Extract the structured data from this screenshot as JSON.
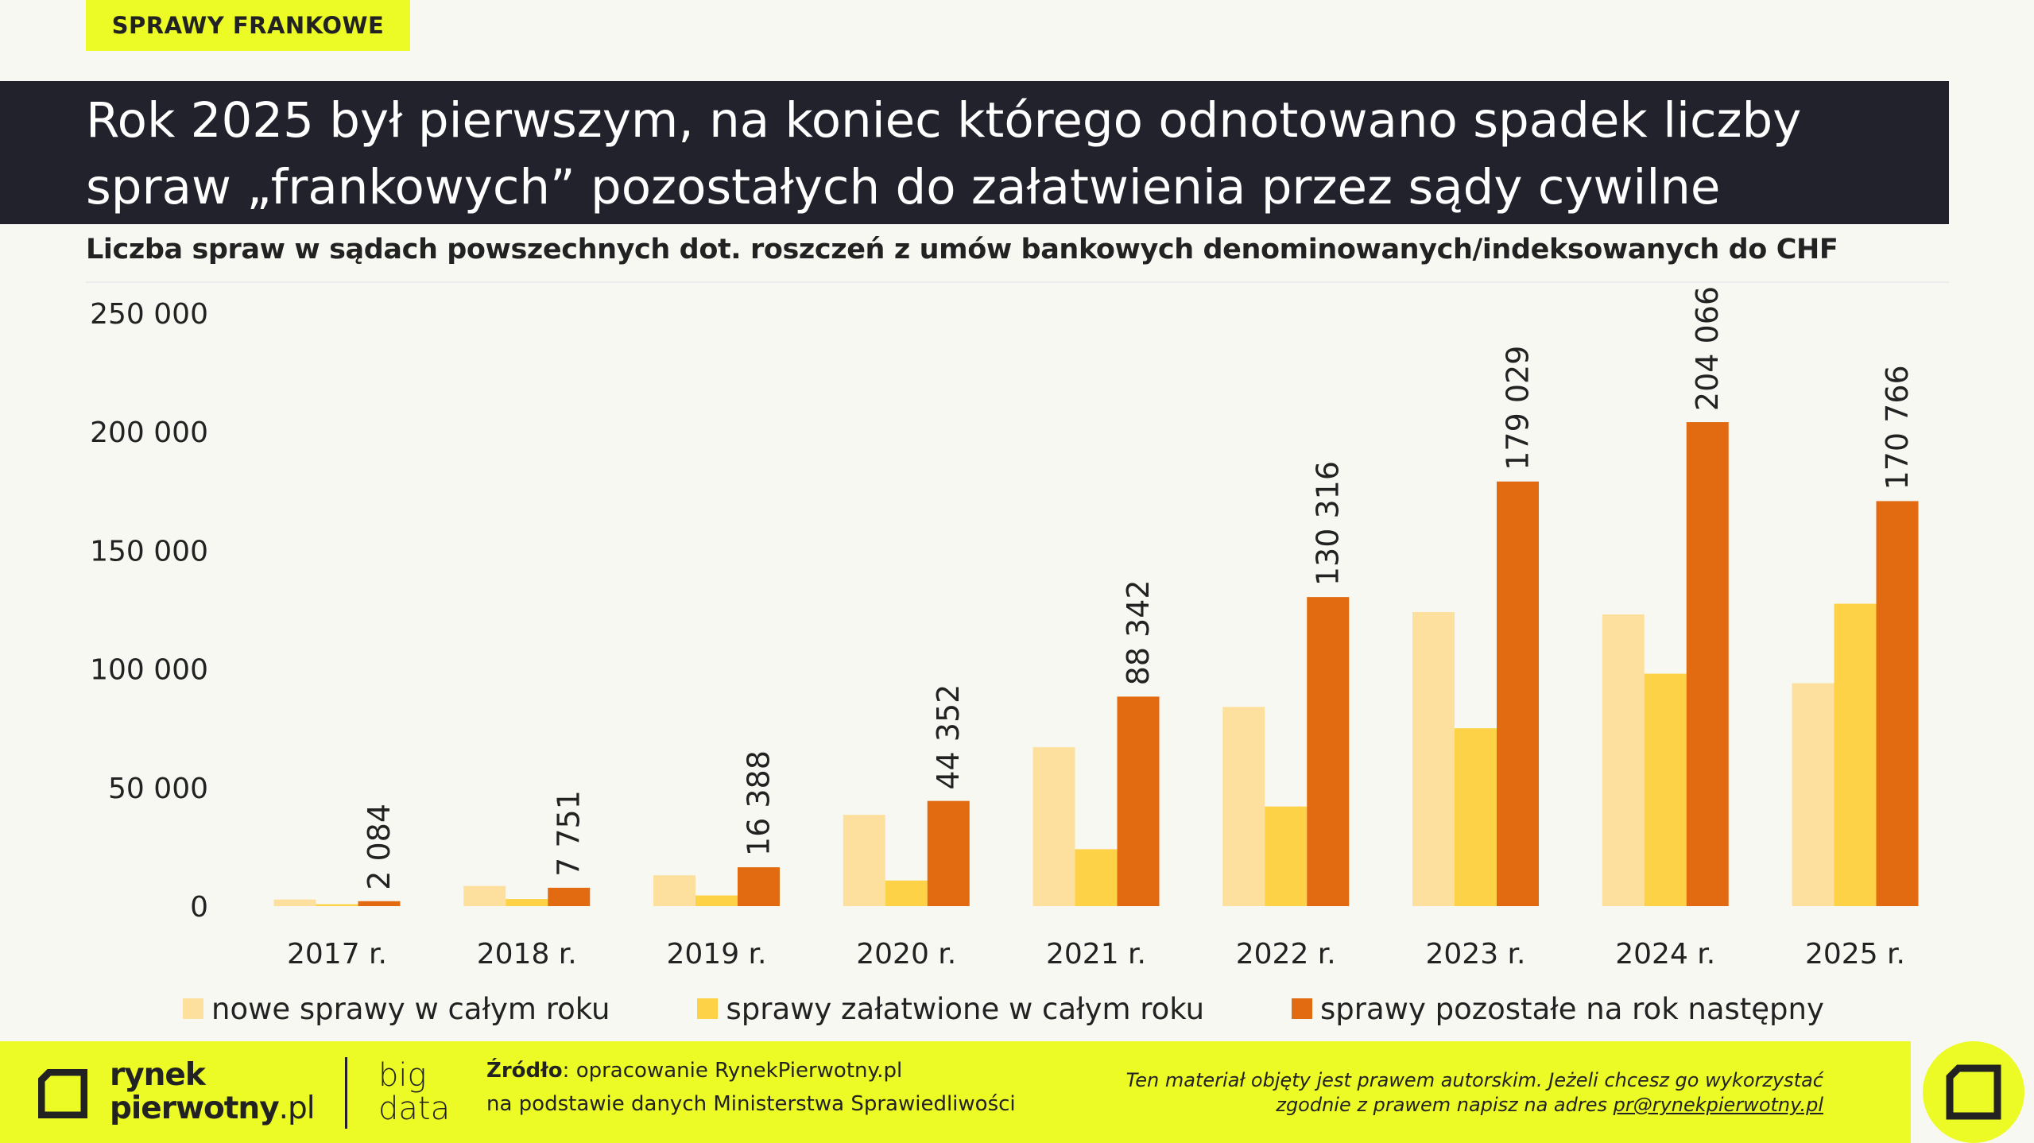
{
  "tag": "SPRAWY FRANKOWE",
  "title": {
    "line1": "Rok 2025 był pierwszym, na koniec którego odnotowano spadek liczby",
    "line2": "spraw „frankowych” pozostałych do załatwienia przez sądy cywilne"
  },
  "subtitle": "Liczba spraw w sądach powszechnych dot. roszczeń z umów bankowych denominowanych/indeksowanych do CHF",
  "chart_data": {
    "type": "bar",
    "title": "Liczba spraw w sądach powszechnych dot. roszczeń z umów bankowych denominowanych/indeksowanych do CHF",
    "categories": [
      "2017 r.",
      "2018 r.",
      "2019 r.",
      "2020 r.",
      "2021 r.",
      "2022 r.",
      "2023 r.",
      "2024 r.",
      "2025 r."
    ],
    "series": [
      {
        "name": "nowe sprawy w całym roku",
        "color": "#fde09e",
        "values": [
          2800,
          8500,
          13000,
          38500,
          67000,
          84000,
          124000,
          123000,
          94000
        ]
      },
      {
        "name": "sprawy załatwione w całym roku",
        "color": "#fed246",
        "values": [
          800,
          3000,
          4500,
          10800,
          24000,
          42000,
          75000,
          98000,
          127500
        ]
      },
      {
        "name": "sprawy pozostałe na rok następny",
        "color": "#e26a10",
        "values": [
          2084,
          7751,
          16388,
          44352,
          88342,
          130316,
          179029,
          204066,
          170766
        ],
        "labels": [
          "2 084",
          "7 751",
          "16 388",
          "44 352",
          "88 342",
          "130 316",
          "179 029",
          "204 066",
          "170 766"
        ]
      }
    ],
    "yticks": [
      0,
      50000,
      100000,
      150000,
      200000,
      250000
    ],
    "ytick_labels": [
      "0",
      "50 000",
      "100 000",
      "150 000",
      "200 000",
      "250 000"
    ],
    "ylim": [
      0,
      250000
    ],
    "xlabel": "",
    "ylabel": "",
    "grid": false,
    "legend": "bottom"
  },
  "footer": {
    "brand_line1": "rynek",
    "brand_line2": "pierwotny",
    "brand_suffix": ".pl",
    "bigdata_line1": "big",
    "bigdata_line2": "data",
    "source_label": "Źródło",
    "source_line1": ": opracowanie RynekPierwotny.pl",
    "source_line2": "na podstawie danych Ministerstwa Sprawiedliwości",
    "copyright_line1": "Ten materiał objęty jest prawem autorskim. Jeżeli chcesz go wykorzystać",
    "copyright_line2": "zgodnie z prawem napisz na adres ",
    "email": "pr@rynekpierwotny.pl"
  },
  "colors": {
    "accent": "#ecfa25",
    "dark": "#22222c"
  }
}
